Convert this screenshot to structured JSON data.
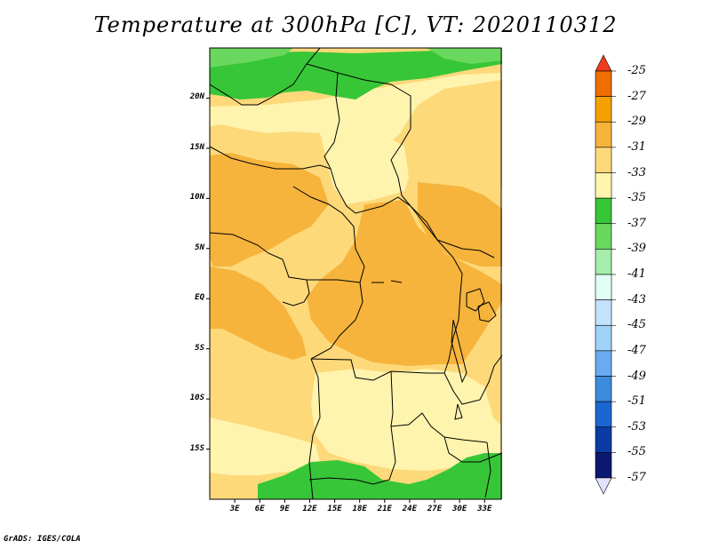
{
  "title": "Temperature at 300hPa [C], VT: 2020110312",
  "credit": "GrADS: IGES/COLA",
  "map": {
    "projection": "lat-lon",
    "lon_range": [
      0,
      35
    ],
    "lat_range": [
      -20,
      25
    ],
    "lat_ticks": [
      {
        "value": 20,
        "label": "20N"
      },
      {
        "value": 15,
        "label": "15N"
      },
      {
        "value": 10,
        "label": "10N"
      },
      {
        "value": 5,
        "label": "5N"
      },
      {
        "value": 0,
        "label": "EQ"
      },
      {
        "value": -5,
        "label": "5S"
      },
      {
        "value": -10,
        "label": "10S"
      },
      {
        "value": -15,
        "label": "15S"
      }
    ],
    "lon_ticks": [
      {
        "value": 3,
        "label": "3E"
      },
      {
        "value": 6,
        "label": "6E"
      },
      {
        "value": 9,
        "label": "9E"
      },
      {
        "value": 12,
        "label": "12E"
      },
      {
        "value": 15,
        "label": "15E"
      },
      {
        "value": 18,
        "label": "18E"
      },
      {
        "value": 21,
        "label": "21E"
      },
      {
        "value": 24,
        "label": "24E"
      },
      {
        "value": 27,
        "label": "27E"
      },
      {
        "value": 30,
        "label": "30E"
      },
      {
        "value": 33,
        "label": "33E"
      }
    ]
  },
  "colorbar": {
    "labels": [
      "-25",
      "-27",
      "-29",
      "-31",
      "-33",
      "-35",
      "-37",
      "-39",
      "-41",
      "-43",
      "-45",
      "-47",
      "-49",
      "-51",
      "-53",
      "-55",
      "-57"
    ],
    "colors": [
      "#f03c1e",
      "#f06d00",
      "#f4a000",
      "#f6b43c",
      "#fdd97a",
      "#fff4ae",
      "#37c637",
      "#6ad85e",
      "#a6ecaa",
      "#e1fff7",
      "#c4e2fb",
      "#9fd2f7",
      "#6aaaf0",
      "#3c8cdc",
      "#1c66d1",
      "#0b3ca4",
      "#0a1870",
      "#e2e2ff"
    ]
  },
  "field": {
    "colors": {
      "tan": "#fff4ae",
      "light_orange": "#fdd97a",
      "orange": "#f6b43c",
      "green": "#37c637",
      "light_green": "#6ad85e",
      "pale_green": "#a6ecaa"
    }
  }
}
